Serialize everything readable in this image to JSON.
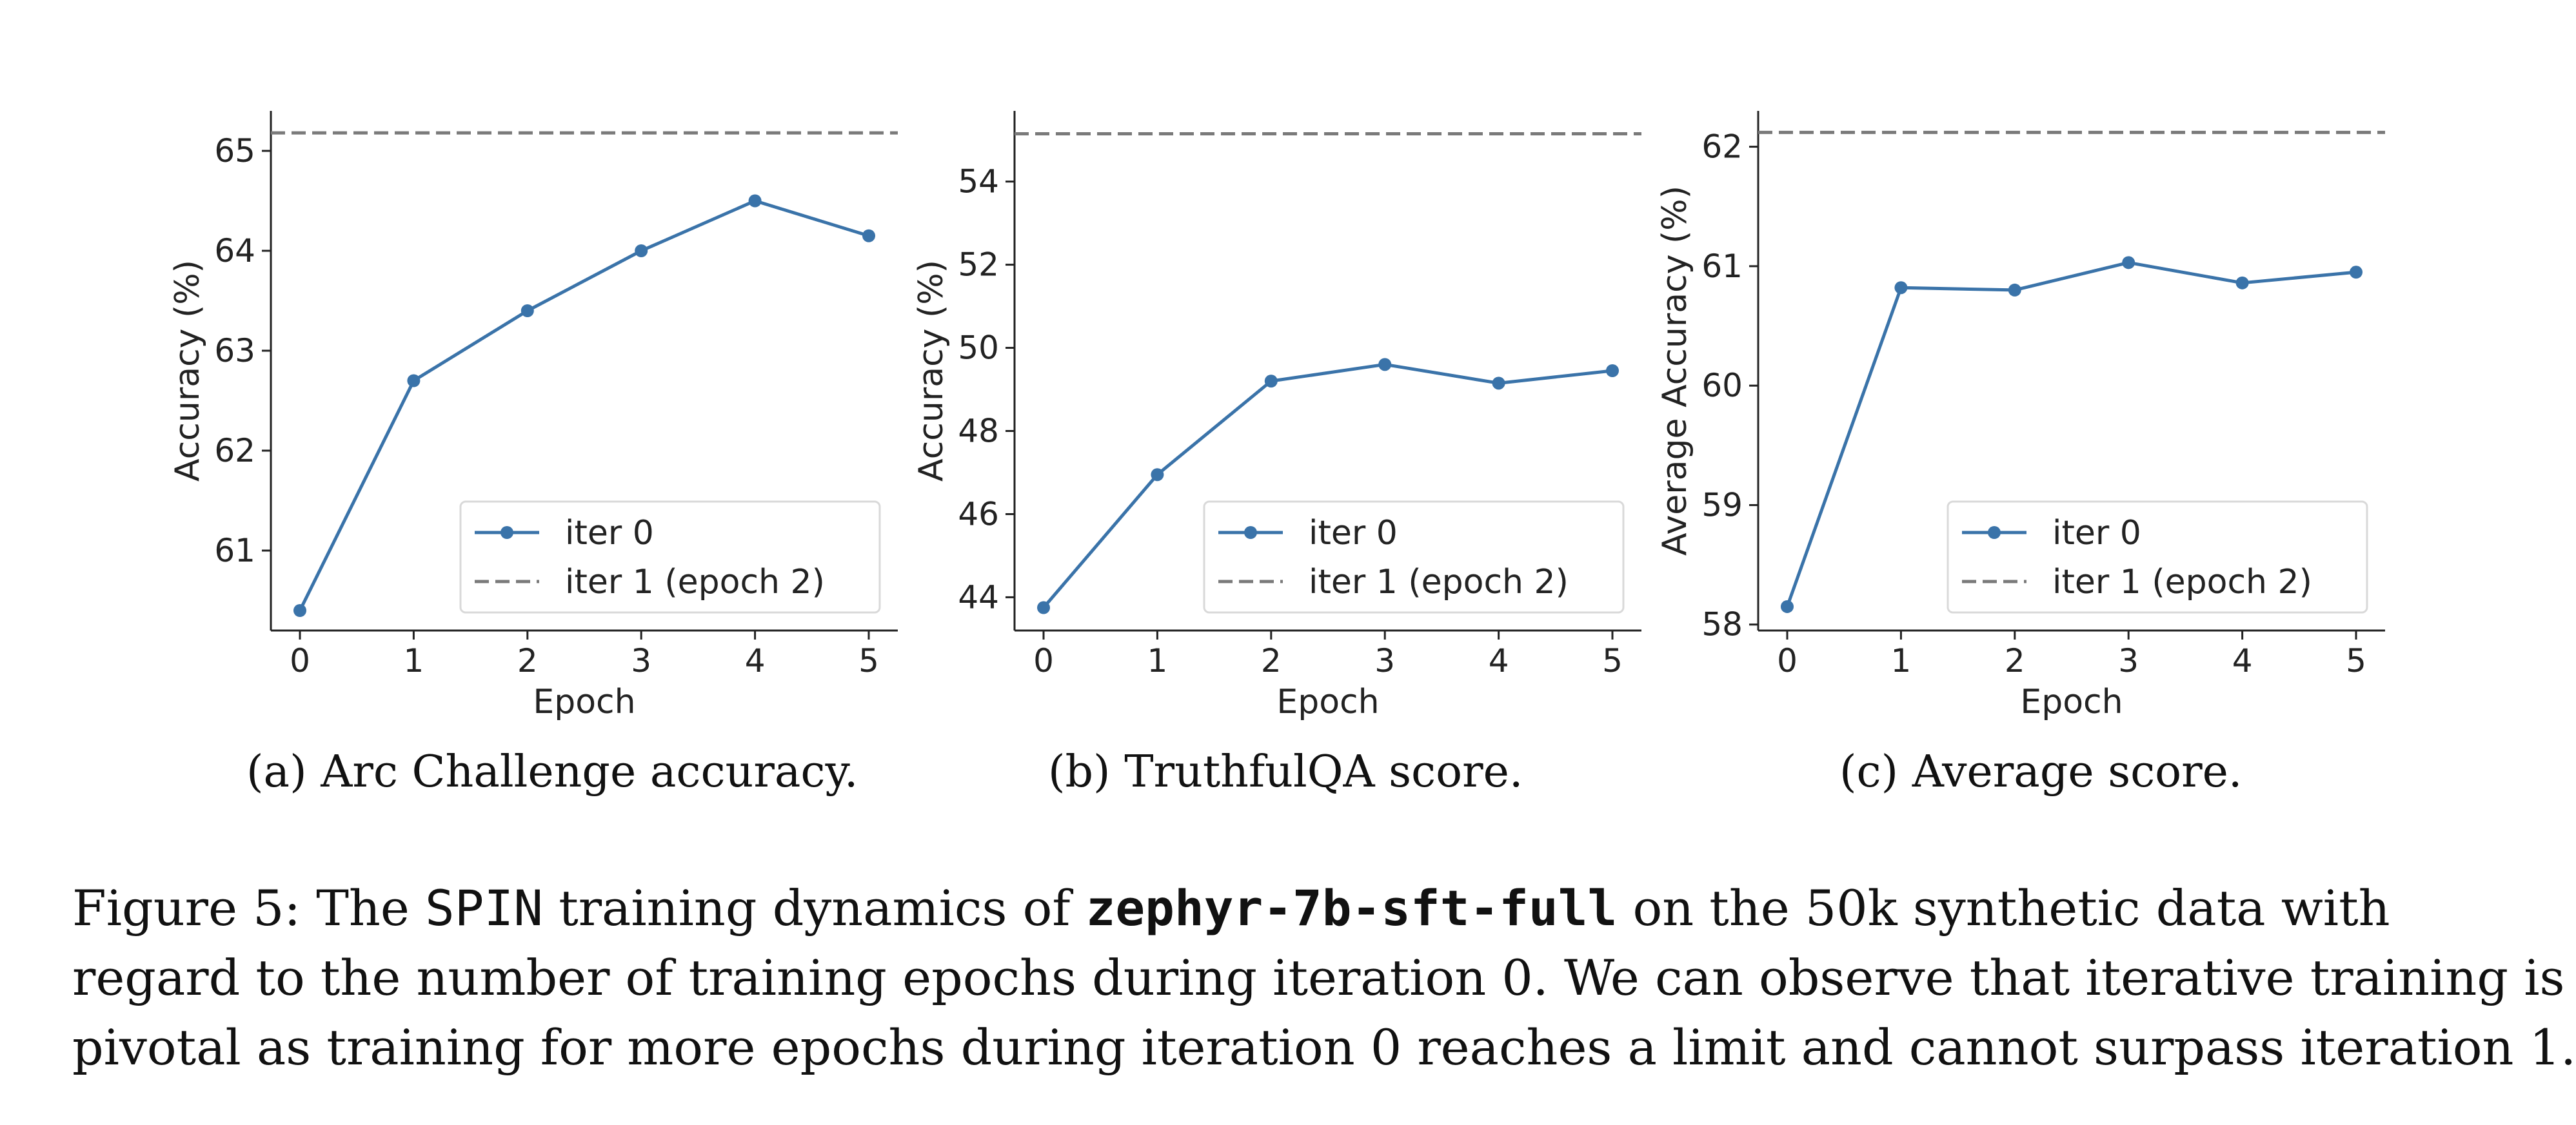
{
  "chart_data": [
    {
      "type": "line",
      "xlabel": "Epoch",
      "ylabel": "Accuracy (%)",
      "x": [
        0,
        1,
        2,
        3,
        4,
        5
      ],
      "xticks": [
        "0",
        "1",
        "2",
        "3",
        "4",
        "5"
      ],
      "yticks": [
        61,
        62,
        63,
        64,
        65
      ],
      "ylim": [
        60.2,
        65.4
      ],
      "series": [
        {
          "name": "iter 0",
          "style": "solid-marker",
          "values": [
            60.4,
            62.7,
            63.4,
            64.0,
            64.5,
            64.15
          ]
        },
        {
          "name": "iter 1 (epoch 2)",
          "style": "dashed",
          "constant": 65.18
        }
      ],
      "legend": "lower-right",
      "caption": "(a) Arc Challenge accuracy."
    },
    {
      "type": "line",
      "xlabel": "Epoch",
      "ylabel": "Accuracy (%)",
      "x": [
        0,
        1,
        2,
        3,
        4,
        5
      ],
      "xticks": [
        "0",
        "1",
        "2",
        "3",
        "4",
        "5"
      ],
      "yticks": [
        44,
        46,
        48,
        50,
        52,
        54
      ],
      "ylim": [
        43.2,
        55.7
      ],
      "series": [
        {
          "name": "iter 0",
          "style": "solid-marker",
          "values": [
            43.75,
            46.95,
            49.2,
            49.6,
            49.15,
            49.45
          ]
        },
        {
          "name": "iter 1 (epoch 2)",
          "style": "dashed",
          "constant": 55.15
        }
      ],
      "legend": "lower-right",
      "caption": "(b) TruthfulQA score."
    },
    {
      "type": "line",
      "xlabel": "Epoch",
      "ylabel": "Average Accuracy (%)",
      "x": [
        0,
        1,
        2,
        3,
        4,
        5
      ],
      "xticks": [
        "0",
        "1",
        "2",
        "3",
        "4",
        "5"
      ],
      "yticks": [
        58,
        59,
        60,
        61,
        62
      ],
      "ylim": [
        57.95,
        62.3
      ],
      "series": [
        {
          "name": "iter 0",
          "style": "solid-marker",
          "values": [
            58.15,
            60.82,
            60.8,
            61.03,
            60.86,
            60.95
          ]
        },
        {
          "name": "iter 1 (epoch 2)",
          "style": "dashed",
          "constant": 62.12
        }
      ],
      "legend": "lower-right",
      "caption": "(c) Average score."
    }
  ],
  "colors": {
    "series_line": "#3a73a9",
    "reference_line": "#7a7a7a",
    "axis": "#222222"
  },
  "caption": {
    "label": "Figure 5:",
    "text_1": " The ",
    "method": "SPIN",
    "text_2": " training dynamics of ",
    "model": "zephyr-7b-sft-full",
    "text_3": " on the 50k synthetic data with",
    "line_2": "regard to the number of training epochs during iteration 0. We can observe that iterative training is",
    "line_3": "pivotal as training for more epochs during iteration 0 reaches a limit and cannot surpass iteration 1."
  }
}
